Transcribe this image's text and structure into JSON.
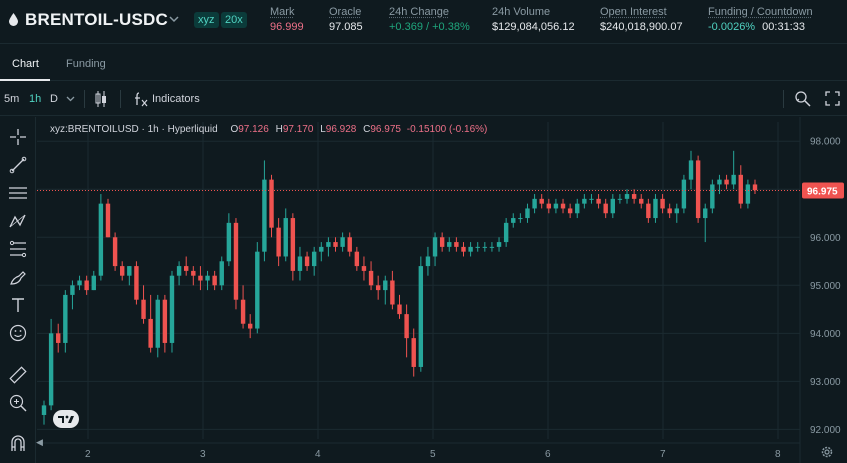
{
  "header": {
    "symbol": "BRENTOIL-USDC",
    "dex_tag": "xyz",
    "leverage": "20x",
    "stats": [
      {
        "label": "Mark",
        "value": "96.999",
        "tone": "red"
      },
      {
        "label": "Oracle",
        "value": "97.085",
        "tone": "plain"
      },
      {
        "label": "24h Change",
        "value": "+0.369 / +0.38%",
        "tone": "green"
      },
      {
        "label": "24h Volume",
        "value": "$129,084,056.12",
        "tone": "plain"
      },
      {
        "label": "Open Interest",
        "value": "$240,018,900.07",
        "tone": "plain"
      },
      {
        "label": "Funding / Countdown",
        "value_a": "-0.0026%",
        "value_b": "00:31:33",
        "tone": "teal"
      }
    ]
  },
  "tabs": [
    "Chart",
    "Funding"
  ],
  "toolbar": {
    "intervals": [
      "5m",
      "1h",
      "D"
    ],
    "active_interval": "1h",
    "indicators_label": "Indicators"
  },
  "legend": {
    "symbol": "xyz:BRENTOILUSD · 1h · Hyperliquid",
    "o_label": "O",
    "o": "97.126",
    "h_label": "H",
    "h": "97.170",
    "l_label": "L",
    "l": "96.928",
    "c_label": "C",
    "c": "96.975",
    "change": "-0.15100 (-0.16%)"
  },
  "chart_data": {
    "type": "candlestick",
    "last_price": "96.975",
    "ylim": [
      91.8,
      98.4
    ],
    "y_ticks": [
      "98.000",
      "97.000",
      "96.000",
      "95.000",
      "94.000",
      "93.000",
      "92.000"
    ],
    "x_ticks": [
      "2",
      "3",
      "4",
      "5",
      "6",
      "7",
      "8"
    ],
    "colors": {
      "up": "#26a69a",
      "down": "#ef5350",
      "grid": "#1b2a30",
      "axis_text": "#8a9aa3"
    },
    "candles": [
      [
        92.3,
        92.6,
        92.1,
        92.5
      ],
      [
        92.5,
        94.3,
        92.4,
        94.0
      ],
      [
        94.0,
        94.2,
        93.6,
        93.8
      ],
      [
        93.8,
        94.9,
        93.6,
        94.8
      ],
      [
        94.8,
        95.1,
        94.5,
        95.0
      ],
      [
        95.0,
        95.2,
        94.9,
        95.1
      ],
      [
        95.1,
        95.2,
        94.8,
        94.9
      ],
      [
        94.9,
        95.3,
        94.9,
        95.2
      ],
      [
        95.2,
        96.9,
        95.1,
        96.7
      ],
      [
        96.7,
        96.8,
        96.0,
        96.0
      ],
      [
        96.0,
        96.1,
        95.3,
        95.4
      ],
      [
        95.4,
        95.5,
        95.1,
        95.2
      ],
      [
        95.2,
        95.4,
        95.0,
        95.4
      ],
      [
        95.4,
        95.5,
        94.6,
        94.7
      ],
      [
        94.7,
        95.0,
        94.2,
        94.3
      ],
      [
        94.3,
        94.8,
        93.6,
        93.7
      ],
      [
        93.7,
        94.8,
        93.5,
        94.7
      ],
      [
        94.7,
        94.8,
        93.6,
        93.8
      ],
      [
        93.8,
        95.3,
        93.6,
        95.2
      ],
      [
        95.2,
        95.5,
        95.0,
        95.4
      ],
      [
        95.4,
        95.6,
        95.2,
        95.3
      ],
      [
        95.3,
        95.4,
        95.0,
        95.2
      ],
      [
        95.2,
        95.4,
        94.9,
        95.1
      ],
      [
        95.1,
        95.3,
        94.9,
        95.2
      ],
      [
        95.2,
        95.3,
        94.9,
        95.0
      ],
      [
        95.0,
        95.6,
        94.9,
        95.5
      ],
      [
        95.5,
        96.5,
        95.4,
        96.3
      ],
      [
        96.3,
        96.4,
        94.5,
        94.7
      ],
      [
        94.7,
        95.0,
        94.1,
        94.2
      ],
      [
        94.2,
        94.4,
        93.9,
        94.1
      ],
      [
        94.1,
        95.9,
        94.0,
        95.7
      ],
      [
        95.7,
        97.6,
        95.5,
        97.2
      ],
      [
        97.2,
        97.3,
        96.0,
        96.2
      ],
      [
        96.2,
        96.4,
        95.4,
        95.6
      ],
      [
        95.6,
        96.6,
        95.5,
        96.4
      ],
      [
        96.4,
        96.5,
        95.1,
        95.3
      ],
      [
        95.3,
        95.8,
        95.1,
        95.6
      ],
      [
        95.6,
        95.7,
        95.3,
        95.4
      ],
      [
        95.4,
        95.8,
        95.2,
        95.7
      ],
      [
        95.7,
        95.9,
        95.5,
        95.8
      ],
      [
        95.8,
        96.0,
        95.6,
        95.9
      ],
      [
        95.9,
        96.0,
        95.7,
        95.8
      ],
      [
        95.8,
        96.1,
        95.7,
        96.0
      ],
      [
        96.0,
        96.1,
        95.6,
        95.7
      ],
      [
        95.7,
        95.8,
        95.3,
        95.4
      ],
      [
        95.4,
        95.6,
        95.1,
        95.3
      ],
      [
        95.3,
        95.5,
        94.9,
        95.0
      ],
      [
        95.0,
        95.2,
        94.7,
        94.9
      ],
      [
        94.9,
        95.2,
        94.6,
        95.1
      ],
      [
        95.1,
        95.3,
        94.5,
        94.6
      ],
      [
        94.6,
        94.8,
        94.3,
        94.4
      ],
      [
        94.4,
        94.6,
        93.5,
        93.9
      ],
      [
        93.9,
        94.1,
        93.1,
        93.3
      ],
      [
        93.3,
        95.6,
        93.2,
        95.4
      ],
      [
        95.4,
        95.8,
        95.2,
        95.6
      ],
      [
        95.6,
        96.1,
        95.4,
        96.0
      ],
      [
        96.0,
        96.1,
        95.7,
        95.8
      ],
      [
        95.8,
        96.0,
        95.7,
        95.9
      ],
      [
        95.9,
        96.0,
        95.7,
        95.8
      ],
      [
        95.8,
        95.9,
        95.6,
        95.7
      ],
      [
        95.7,
        95.9,
        95.6,
        95.8
      ],
      [
        95.8,
        95.9,
        95.7,
        95.8
      ],
      [
        95.8,
        95.9,
        95.7,
        95.8
      ],
      [
        95.8,
        95.9,
        95.7,
        95.8
      ],
      [
        95.8,
        96.0,
        95.7,
        95.9
      ],
      [
        95.9,
        96.4,
        95.8,
        96.3
      ],
      [
        96.3,
        96.5,
        96.2,
        96.4
      ],
      [
        96.4,
        96.5,
        96.3,
        96.4
      ],
      [
        96.4,
        96.7,
        96.3,
        96.6
      ],
      [
        96.6,
        96.9,
        96.5,
        96.8
      ],
      [
        96.8,
        96.9,
        96.6,
        96.7
      ],
      [
        96.7,
        96.8,
        96.5,
        96.6
      ],
      [
        96.6,
        96.8,
        96.5,
        96.7
      ],
      [
        96.7,
        96.8,
        96.5,
        96.6
      ],
      [
        96.6,
        96.7,
        96.4,
        96.5
      ],
      [
        96.5,
        96.8,
        96.4,
        96.7
      ],
      [
        96.7,
        96.9,
        96.6,
        96.8
      ],
      [
        96.8,
        96.9,
        96.7,
        96.8
      ],
      [
        96.8,
        96.9,
        96.6,
        96.7
      ],
      [
        96.7,
        96.8,
        96.4,
        96.5
      ],
      [
        96.5,
        96.9,
        96.4,
        96.8
      ],
      [
        96.8,
        96.9,
        96.7,
        96.8
      ],
      [
        96.8,
        97.0,
        96.7,
        96.9
      ],
      [
        96.9,
        97.0,
        96.7,
        96.8
      ],
      [
        96.8,
        96.9,
        96.6,
        96.7
      ],
      [
        96.7,
        96.8,
        96.3,
        96.4
      ],
      [
        96.4,
        96.9,
        96.3,
        96.8
      ],
      [
        96.8,
        96.9,
        96.5,
        96.6
      ],
      [
        96.6,
        96.7,
        96.4,
        96.5
      ],
      [
        96.5,
        96.7,
        96.3,
        96.6
      ],
      [
        96.6,
        97.3,
        96.5,
        97.2
      ],
      [
        97.2,
        97.8,
        97.0,
        97.6
      ],
      [
        97.6,
        97.7,
        96.3,
        96.4
      ],
      [
        96.4,
        96.7,
        95.9,
        96.6
      ],
      [
        96.6,
        97.2,
        96.5,
        97.1
      ],
      [
        97.1,
        97.3,
        96.9,
        97.2
      ],
      [
        97.2,
        97.3,
        97.0,
        97.1
      ],
      [
        97.1,
        97.8,
        97.0,
        97.3
      ],
      [
        97.3,
        97.5,
        96.6,
        96.7
      ],
      [
        96.7,
        97.2,
        96.6,
        97.1
      ],
      [
        97.1,
        97.2,
        96.9,
        96.98
      ]
    ]
  }
}
